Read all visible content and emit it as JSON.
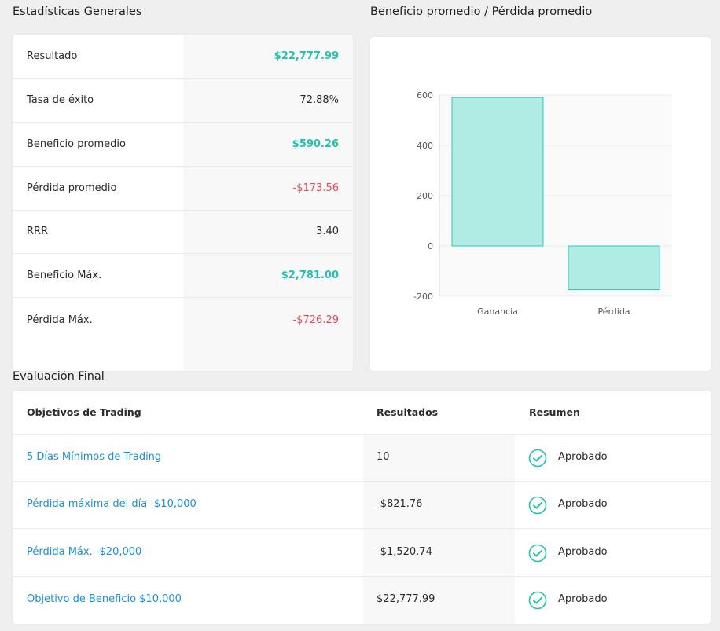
{
  "stats": {
    "title": "Estadísticas Generales",
    "rows": [
      {
        "label": "Resultado",
        "value": "$22,777.99",
        "tone": "pos"
      },
      {
        "label": "Tasa de éxito",
        "value": "72.88%",
        "tone": "neutral"
      },
      {
        "label": "Beneficio promedio",
        "value": "$590.26",
        "tone": "pos"
      },
      {
        "label": "Pérdida promedio",
        "value": "-$173.56",
        "tone": "neg"
      },
      {
        "label": "RRR",
        "value": "3.40",
        "tone": "neutral"
      },
      {
        "label": "Beneficio Máx.",
        "value": "$2,781.00",
        "tone": "pos"
      },
      {
        "label": "Pérdida Máx.",
        "value": "-$726.29",
        "tone": "neg"
      }
    ]
  },
  "chart_title": "Beneficio promedio / Pérdida promedio",
  "chart_data": {
    "type": "bar",
    "categories": [
      "Ganancia",
      "Pérdida"
    ],
    "values": [
      590.26,
      -173.56
    ],
    "title": "Beneficio promedio / Pérdida promedio",
    "xlabel": "",
    "ylabel": "",
    "ylim": [
      -200,
      600
    ],
    "yticks": [
      600,
      400,
      200,
      0,
      -200
    ],
    "grid": true,
    "bar_color": "#b0ebe4",
    "bar_border": "#2cc8b6"
  },
  "evaluation": {
    "title": "Evaluación Final",
    "headers": {
      "objective": "Objetivos de Trading",
      "result": "Resultados",
      "summary": "Resumen"
    },
    "rows": [
      {
        "objective": "5 Días Mínimos de Trading",
        "result": "10",
        "status": "Aprobado"
      },
      {
        "objective": "Pérdida máxima del día -$10,000",
        "result": "-$821.76",
        "status": "Aprobado"
      },
      {
        "objective": "Pérdida Máx. -$20,000",
        "result": "-$1,520.74",
        "status": "Aprobado"
      },
      {
        "objective": "Objetivo de Beneficio $10,000",
        "result": "$22,777.99",
        "status": "Aprobado"
      }
    ],
    "check_icon": "check-circle-icon",
    "accent": "#1fc3b0"
  }
}
